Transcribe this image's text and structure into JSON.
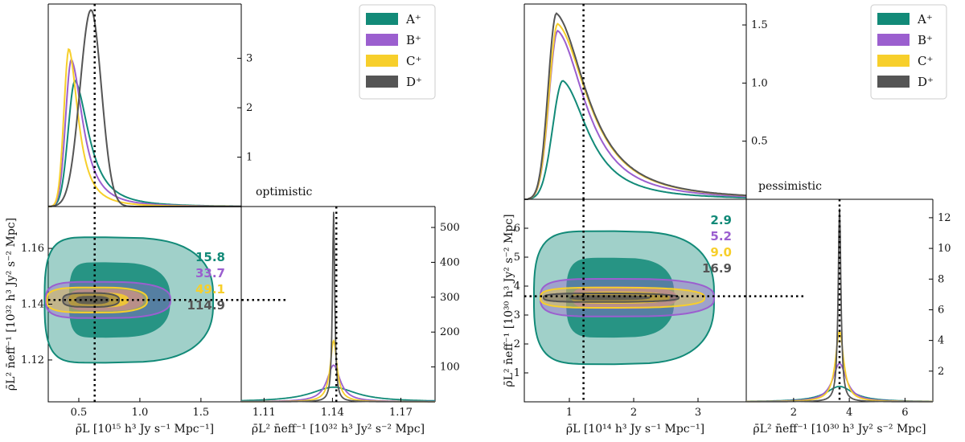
{
  "colors": {
    "A": "#128a78",
    "B": "#9b5fcf",
    "C": "#f7cf2b",
    "D": "#555555"
  },
  "legend": [
    {
      "key": "A",
      "label": "A⁺"
    },
    {
      "key": "B",
      "label": "B⁺"
    },
    {
      "key": "C",
      "label": "C⁺"
    },
    {
      "key": "D",
      "label": "D⁺"
    }
  ],
  "chart_data": [
    {
      "type": "line",
      "scenario": "optimistic",
      "x_label": "ρ̄L [10¹⁵ h³ Jy s⁻¹ Mpc⁻¹]",
      "y_label": "ρ̄L² n̄eff⁻¹ [10³² h³ Jy² s⁻² Mpc]",
      "x_ticks": [
        "0.5",
        "1.0",
        "1.5"
      ],
      "y_ticks": [
        "1.12",
        "1.14",
        "1.16"
      ],
      "pdf1_ticks": [
        "1",
        "2",
        "3"
      ],
      "pdf2_ticks": [
        "100",
        "200",
        "300",
        "400",
        "500"
      ],
      "x2_ticks": [
        "1.11",
        "1.14",
        "1.17"
      ],
      "xlim": [
        0.25,
        1.83
      ],
      "ylim": [
        1.105,
        1.175
      ],
      "pdf1_ylim": [
        0,
        4.1
      ],
      "pdf2_ylim": [
        0,
        560
      ],
      "x_true": 0.63,
      "y_true": 1.1415,
      "fom": [
        {
          "key": "A",
          "value": "15.8"
        },
        {
          "key": "B",
          "value": "33.7"
        },
        {
          "key": "C",
          "value": "49.1"
        },
        {
          "key": "D",
          "value": "114.9"
        }
      ],
      "pdf1_peaks": [
        {
          "key": "A",
          "peak_x": 0.47,
          "peak_y": 2.55
        },
        {
          "key": "B",
          "peak_x": 0.44,
          "peak_y": 2.98
        },
        {
          "key": "C",
          "peak_x": 0.42,
          "peak_y": 3.2
        },
        {
          "key": "D",
          "peak_x": 0.6,
          "peak_y": 3.98
        }
      ],
      "pdf2_peaks": [
        {
          "key": "A",
          "peak_y": 42
        },
        {
          "key": "B",
          "peak_y": 105
        },
        {
          "key": "C",
          "peak_y": 175
        },
        {
          "key": "D",
          "peak_y": 545
        }
      ]
    },
    {
      "type": "line",
      "scenario": "pessimistic",
      "x_label": "ρ̄L [10¹⁴ h³ Jy s⁻¹ Mpc⁻¹]",
      "y_label": "ρ̄L² n̄eff⁻¹ [10³⁰ h³ Jy² s⁻² Mpc]",
      "x_ticks": [
        "1",
        "2",
        "3"
      ],
      "y_ticks": [
        "1",
        "2",
        "3",
        "4",
        "5",
        "6"
      ],
      "pdf1_ticks": [
        "0.5",
        "1.0",
        "1.5"
      ],
      "pdf2_ticks": [
        "2",
        "4",
        "6",
        "8",
        "10",
        "12"
      ],
      "x2_ticks": [
        "2",
        "4",
        "6"
      ],
      "xlim": [
        0.3,
        3.75
      ],
      "ylim": [
        0,
        7
      ],
      "pdf1_ylim": [
        0,
        1.68
      ],
      "pdf2_ylim": [
        0,
        13.2
      ],
      "x_true": 1.22,
      "y_true": 3.65,
      "fom": [
        {
          "key": "A",
          "value": "2.9"
        },
        {
          "key": "B",
          "value": "5.2"
        },
        {
          "key": "C",
          "value": "9.0"
        },
        {
          "key": "D",
          "value": "16.9"
        }
      ],
      "pdf1_peaks": [
        {
          "key": "A",
          "peak_x": 0.9,
          "peak_y": 1.02
        },
        {
          "key": "B",
          "peak_x": 0.82,
          "peak_y": 1.45
        },
        {
          "key": "C",
          "peak_x": 0.82,
          "peak_y": 1.51
        },
        {
          "key": "D",
          "peak_x": 0.8,
          "peak_y": 1.6
        }
      ],
      "pdf2_peaks": [
        {
          "key": "A",
          "peak_y": 1.0
        },
        {
          "key": "B",
          "peak_y": 2.5
        },
        {
          "key": "C",
          "peak_y": 4.6
        },
        {
          "key": "D",
          "peak_y": 12.6
        }
      ]
    }
  ]
}
